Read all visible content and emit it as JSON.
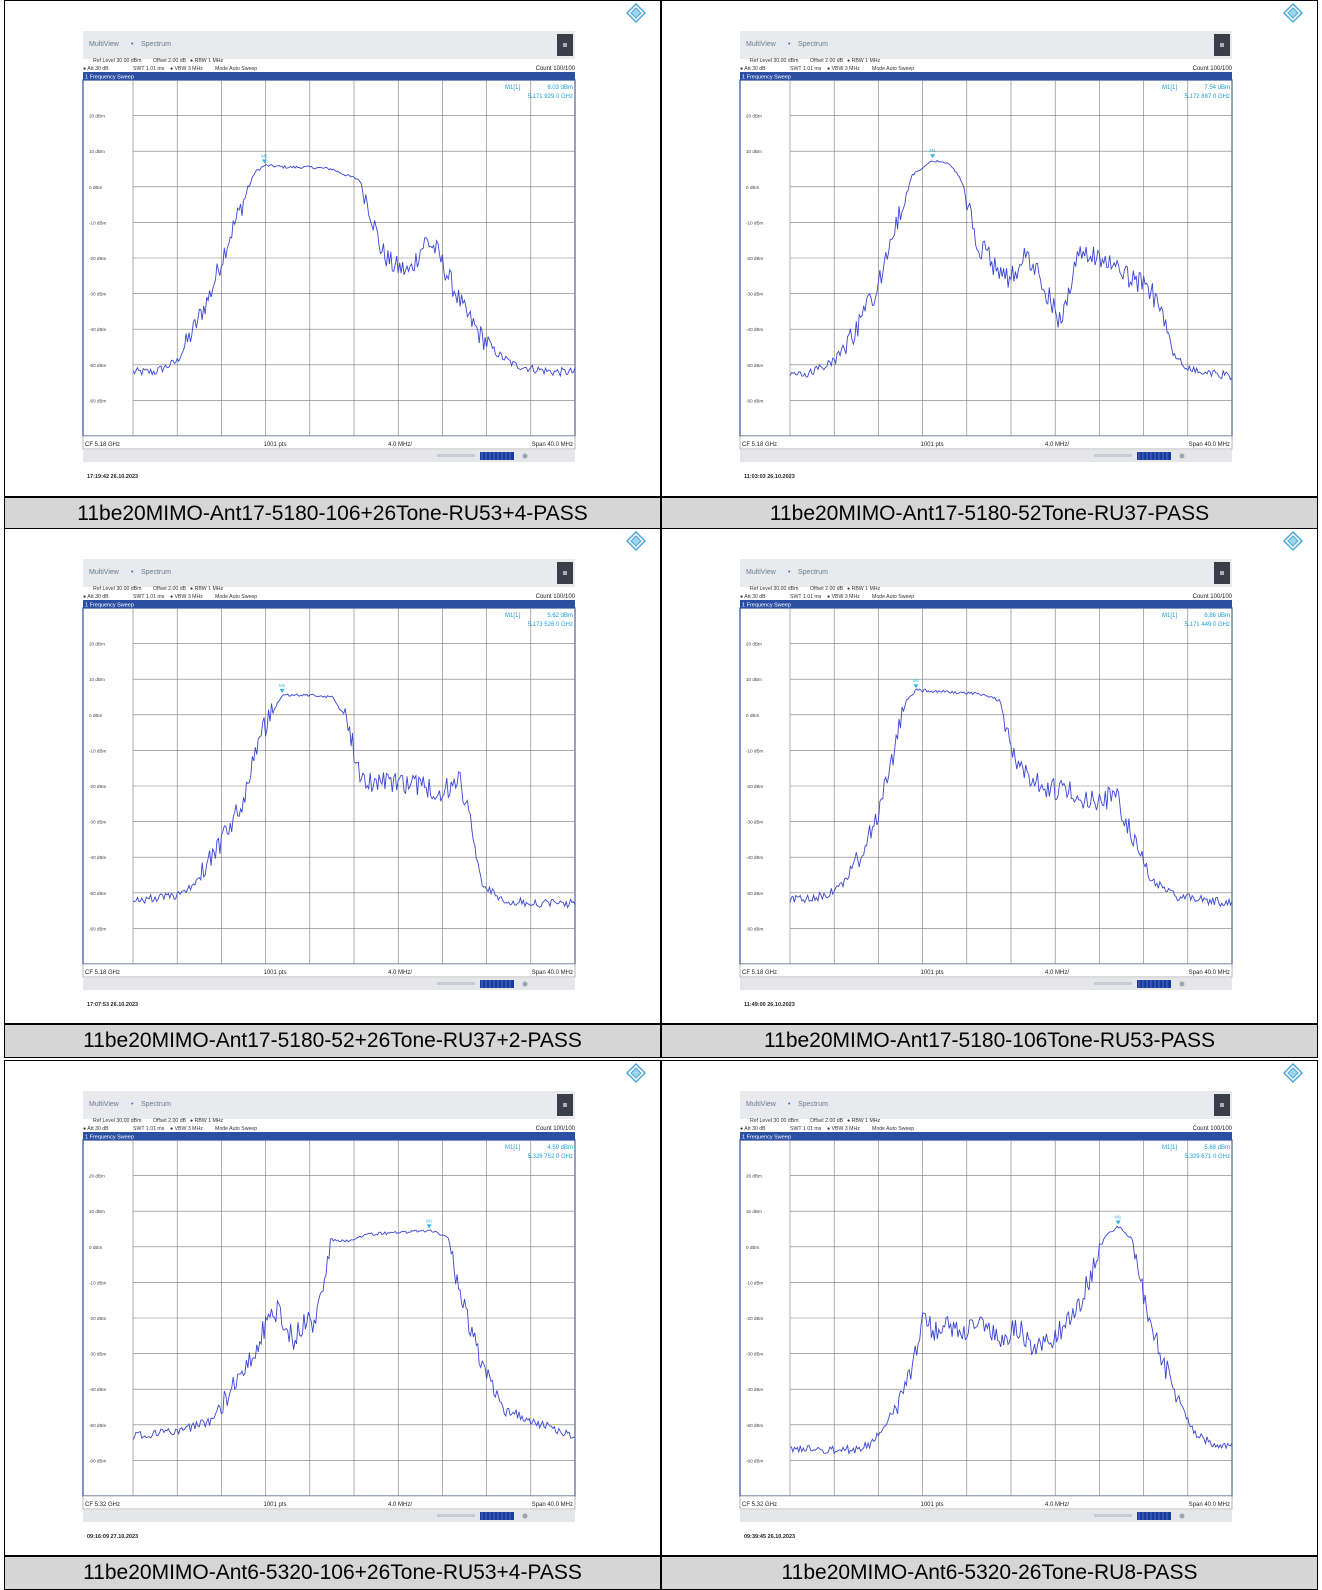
{
  "panels": [
    {
      "caption": "11be20MIMO-Ant17-5180-106+26Tone-RU53+4-PASS",
      "header": {
        "app": "MultiView",
        "mode_tab": "Spectrum",
        "ref_level": "Ref Level 30.00 dBm",
        "offset": "Offset 2.00 dB",
        "rbw": "RBW 1 MHz",
        "att": "Att 30 dB",
        "swt": "SWT 1.01 ms",
        "vbw": "VBW 3 MHz",
        "sweep_mode": "Mode Auto Sweep",
        "count": "Count 100/100",
        "title_bar": "1 Frequency Sweep",
        "trace_label": ""
      },
      "marker": {
        "name": "M1[1]",
        "level": "6.03 dBm",
        "freq": "5.171 929 0 GHz"
      },
      "footer": {
        "cf": "CF 5.18 GHz",
        "pts": "1001 pts",
        "div": "4.0 MHz/",
        "span": "Span 40.0 MHz"
      },
      "timestamp": "17:19:42  26.10.2023",
      "chart_data": {
        "type": "line",
        "xlabel": "",
        "ylabel": "",
        "xlim": [
          5.16,
          5.2
        ],
        "ylim": [
          -70,
          30
        ],
        "y_ticks": [
          "20 dBm",
          "10 dBm",
          "0 dBm",
          "-10 dBm",
          "-20 dBm",
          "-30 dBm",
          "-40 dBm",
          "-50 dBm",
          "-60 dBm"
        ],
        "x_unit": "GHz",
        "y_unit": "dBm",
        "grid": true,
        "series": [
          {
            "x": [
              5.16,
              5.162,
              5.164,
              5.1655,
              5.167,
              5.1685,
              5.17,
              5.171,
              5.1719,
              5.174,
              5.176,
              5.178,
              5.1795,
              5.1805,
              5.1812,
              5.1825,
              5.1835,
              5.185,
              5.1865,
              5.1875,
              5.1885,
              5.19,
              5.1915,
              5.193,
              5.1945,
              5.196,
              5.198,
              5.2
            ],
            "y": [
              -52,
              -52,
              -49,
              -40,
              -30,
              -16,
              -4,
              4,
              6,
              5.5,
              5.5,
              5,
              3,
              2,
              -4,
              -18,
              -22,
              -24,
              -15,
              -18,
              -25,
              -35,
              -42,
              -47,
              -50,
              -51,
              -52,
              -52
            ]
          }
        ]
      }
    },
    {
      "caption": "11be20MIMO-Ant17-5180-52Tone-RU37-PASS",
      "header": {
        "app": "MultiView",
        "mode_tab": "Spectrum",
        "ref_level": "Ref Level 30.00 dBm",
        "offset": "Offset 2.00 dB",
        "rbw": "RBW 1 MHz",
        "att": "Att 30 dB",
        "swt": "SWT 1.01 ms",
        "vbw": "VBW 3 MHz",
        "sweep_mode": "Mode Auto Sweep",
        "count": "Count 100/100",
        "title_bar": "1 Frequency Sweep",
        "trace_label": ""
      },
      "marker": {
        "name": "M1[1]",
        "level": "7.54 dBm",
        "freq": "5.172 887 0 GHz"
      },
      "footer": {
        "cf": "CF 5.18 GHz",
        "pts": "1001 pts",
        "div": "4.0 MHz/",
        "span": "Span 40.0 MHz"
      },
      "timestamp": "11:03:03  26.10.2023",
      "chart_data": {
        "type": "line",
        "xlabel": "",
        "ylabel": "",
        "xlim": [
          5.16,
          5.2
        ],
        "ylim": [
          -70,
          30
        ],
        "y_ticks": [
          "20 dBm",
          "10 dBm",
          "0 dBm",
          "-10 dBm",
          "-20 dBm",
          "-30 dBm",
          "-40 dBm",
          "-50 dBm",
          "-60 dBm"
        ],
        "x_unit": "GHz",
        "y_unit": "dBm",
        "grid": true,
        "series": [
          {
            "x": [
              5.16,
              5.162,
              5.164,
              5.166,
              5.168,
              5.1695,
              5.171,
              5.1729,
              5.1745,
              5.1755,
              5.177,
              5.1785,
              5.18,
              5.1815,
              5.183,
              5.1845,
              5.186,
              5.188,
              5.19,
              5.192,
              5.1935,
              5.1945,
              5.1955,
              5.197,
              5.2
            ],
            "y": [
              -53,
              -52,
              -49,
              -40,
              -28,
              -12,
              3,
              7.5,
              6.5,
              2,
              -16,
              -22,
              -26,
              -19,
              -28,
              -38,
              -20,
              -19,
              -25,
              -27,
              -33,
              -46,
              -50,
              -52,
              -53
            ]
          }
        ]
      }
    },
    {
      "caption": "11be20MIMO-Ant17-5180-52+26Tone-RU37+2-PASS",
      "header": {
        "app": "MultiView",
        "mode_tab": "Spectrum",
        "ref_level": "Ref Level 30.00 dBm",
        "offset": "Offset 2.00 dB",
        "rbw": "RBW 1 MHz",
        "att": "Att 30 dB",
        "swt": "SWT 1.01 ms",
        "vbw": "VBW 3 MHz",
        "sweep_mode": "Mode Auto Sweep",
        "count": "Count 100/100",
        "title_bar": "1 Frequency Sweep",
        "trace_label": ""
      },
      "marker": {
        "name": "M1[1]",
        "level": "5.62 dBm",
        "freq": "5.173 526 0 GHz"
      },
      "footer": {
        "cf": "CF 5.18 GHz",
        "pts": "1001 pts",
        "div": "4.0 MHz/",
        "span": "Span 40.0 MHz"
      },
      "timestamp": "17:07:53  26.10.2023",
      "chart_data": {
        "type": "line",
        "xlabel": "",
        "ylabel": "",
        "xlim": [
          5.16,
          5.2
        ],
        "ylim": [
          -70,
          30
        ],
        "y_ticks": [
          "20 dBm",
          "10 dBm",
          "0 dBm",
          "-10 dBm",
          "-20 dBm",
          "-30 dBm",
          "-40 dBm",
          "-50 dBm",
          "-60 dBm"
        ],
        "x_unit": "GHz",
        "y_unit": "dBm",
        "grid": true,
        "series": [
          {
            "x": [
              5.16,
              5.164,
              5.166,
              5.168,
              5.17,
              5.1715,
              5.1735,
              5.176,
              5.178,
              5.1795,
              5.1805,
              5.183,
              5.186,
              5.188,
              5.1895,
              5.1905,
              5.1915,
              5.1935,
              5.196,
              5.2
            ],
            "y": [
              -52,
              -51,
              -46,
              -36,
              -24,
              -6,
              5.6,
              5.5,
              5,
              -2,
              -18,
              -19,
              -20,
              -22,
              -18,
              -30,
              -47,
              -52,
              -53,
              -53
            ]
          }
        ]
      }
    },
    {
      "caption": "11be20MIMO-Ant17-5180-106Tone-RU53-PASS",
      "header": {
        "app": "MultiView",
        "mode_tab": "Spectrum",
        "ref_level": "Ref Level 30.00 dBm",
        "offset": "Offset 2.00 dB",
        "rbw": "RBW 1 MHz",
        "att": "Att 30 dB",
        "swt": "SWT 1.01 ms",
        "vbw": "VBW 3 MHz",
        "sweep_mode": "Mode Auto Sweep",
        "count": "Count 100/100",
        "title_bar": "1 Frequency Sweep",
        "trace_label": ""
      },
      "marker": {
        "name": "M1[1]",
        "level": "6.86 dBm",
        "freq": "5.171 449 0 GHz"
      },
      "footer": {
        "cf": "CF 5.18 GHz",
        "pts": "1001 pts",
        "div": "4.0 MHz/",
        "span": "Span 40.0 MHz"
      },
      "timestamp": "11:49:00  26.10.2023",
      "chart_data": {
        "type": "line",
        "xlabel": "",
        "ylabel": "",
        "xlim": [
          5.16,
          5.2
        ],
        "ylim": [
          -70,
          30
        ],
        "y_ticks": [
          "20 dBm",
          "10 dBm",
          "0 dBm",
          "-10 dBm",
          "-20 dBm",
          "-30 dBm",
          "-40 dBm",
          "-50 dBm",
          "-60 dBm"
        ],
        "x_unit": "GHz",
        "y_unit": "dBm",
        "grid": true,
        "series": [
          {
            "x": [
              5.16,
              5.163,
              5.165,
              5.167,
              5.1685,
              5.1705,
              5.1714,
              5.174,
              5.177,
              5.179,
              5.1805,
              5.183,
              5.1855,
              5.188,
              5.1895,
              5.191,
              5.1925,
              5.195,
              5.2
            ],
            "y": [
              -52,
              -51,
              -47,
              -36,
              -22,
              4,
              6.9,
              6.5,
              6,
              4,
              -14,
              -20,
              -22,
              -25,
              -22,
              -35,
              -46,
              -51,
              -53
            ]
          }
        ]
      }
    },
    {
      "caption": "11be20MIMO-Ant6-5320-106+26Tone-RU53+4-PASS",
      "header": {
        "app": "MultiView",
        "mode_tab": "Spectrum",
        "ref_level": "Ref Level 30.00 dBm",
        "offset": "Offset 2.00 dB",
        "rbw": "RBW 1 MHz",
        "att": "Att 30 dB",
        "swt": "SWT 1.01 ms",
        "vbw": "VBW 3 MHz",
        "sweep_mode": "Mode Auto Sweep",
        "count": "Count 100/100",
        "title_bar": "1 Frequency Sweep",
        "trace_label": ""
      },
      "marker": {
        "name": "M1[1]",
        "level": "4.59 dBm",
        "freq": "5.326 752 0 GHz"
      },
      "footer": {
        "cf": "CF 5.32 GHz",
        "pts": "1001 pts",
        "div": "4.0 MHz/",
        "span": "Span 40.0 MHz"
      },
      "timestamp": "09:16:09  27.10.2023",
      "chart_data": {
        "type": "line",
        "xlabel": "",
        "ylabel": "",
        "xlim": [
          5.3,
          5.34
        ],
        "ylim": [
          -70,
          30
        ],
        "y_ticks": [
          "20 dBm",
          "10 dBm",
          "0 dBm",
          "-10 dBm",
          "-20 dBm",
          "-30 dBm",
          "-40 dBm",
          "-50 dBm",
          "-60 dBm"
        ],
        "x_unit": "GHz",
        "y_unit": "dBm",
        "grid": true,
        "series": [
          {
            "x": [
              5.3,
              5.304,
              5.307,
              5.309,
              5.3105,
              5.312,
              5.313,
              5.3145,
              5.3158,
              5.3165,
              5.318,
              5.3195,
              5.321,
              5.324,
              5.3268,
              5.3285,
              5.3295,
              5.331,
              5.3325,
              5.334,
              5.337,
              5.34
            ],
            "y": [
              -53,
              -52,
              -49,
              -40,
              -32,
              -22,
              -18,
              -26,
              -20,
              -22,
              2,
              1.5,
              3.5,
              4,
              4.6,
              3,
              -12,
              -28,
              -38,
              -46,
              -50,
              -53
            ]
          }
        ]
      }
    },
    {
      "caption": "11be20MIMO-Ant6-5320-26Tone-RU8-PASS",
      "header": {
        "app": "MultiView",
        "mode_tab": "Spectrum",
        "ref_level": "Ref Level 30.00 dBm",
        "offset": "Offset 2.00 dB",
        "rbw": "RBW 1 MHz",
        "att": "Att 30 dB",
        "swt": "SWT 1.01 ms",
        "vbw": "VBW 3 MHz",
        "sweep_mode": "Mode Auto Sweep",
        "count": "Count 100/100",
        "title_bar": "1 Frequency Sweep",
        "trace_label": ""
      },
      "marker": {
        "name": "M1[1]",
        "level": "5.68 dBm",
        "freq": "5.329 671 0 GHz"
      },
      "footer": {
        "cf": "CF 5.32 GHz",
        "pts": "1001 pts",
        "div": "4.0 MHz/",
        "span": "Span 40.0 MHz"
      },
      "timestamp": "09:39:45  26.10.2023",
      "chart_data": {
        "type": "line",
        "xlabel": "",
        "ylabel": "",
        "xlim": [
          5.3,
          5.34
        ],
        "ylim": [
          -70,
          30
        ],
        "y_ticks": [
          "20 dBm",
          "10 dBm",
          "0 dBm",
          "-10 dBm",
          "-20 dBm",
          "-30 dBm",
          "-40 dBm",
          "-50 dBm",
          "-60 dBm"
        ],
        "x_unit": "GHz",
        "y_unit": "dBm",
        "grid": true,
        "series": [
          {
            "x": [
              5.3,
              5.306,
              5.3075,
              5.309,
              5.3105,
              5.312,
              5.3135,
              5.3148,
              5.316,
              5.3175,
              5.319,
              5.3205,
              5.322,
              5.324,
              5.3255,
              5.327,
              5.3285,
              5.3297,
              5.331,
              5.332,
              5.3335,
              5.335,
              5.3365,
              5.338,
              5.34
            ],
            "y": [
              -57,
              -57,
              -55,
              -48,
              -40,
              -21,
              -24,
              -22,
              -24,
              -22,
              -27,
              -22,
              -28,
              -25,
              -20,
              -10,
              3,
              5.7,
              2,
              -14,
              -30,
              -42,
              -52,
              -55,
              -56
            ]
          }
        ]
      }
    }
  ]
}
